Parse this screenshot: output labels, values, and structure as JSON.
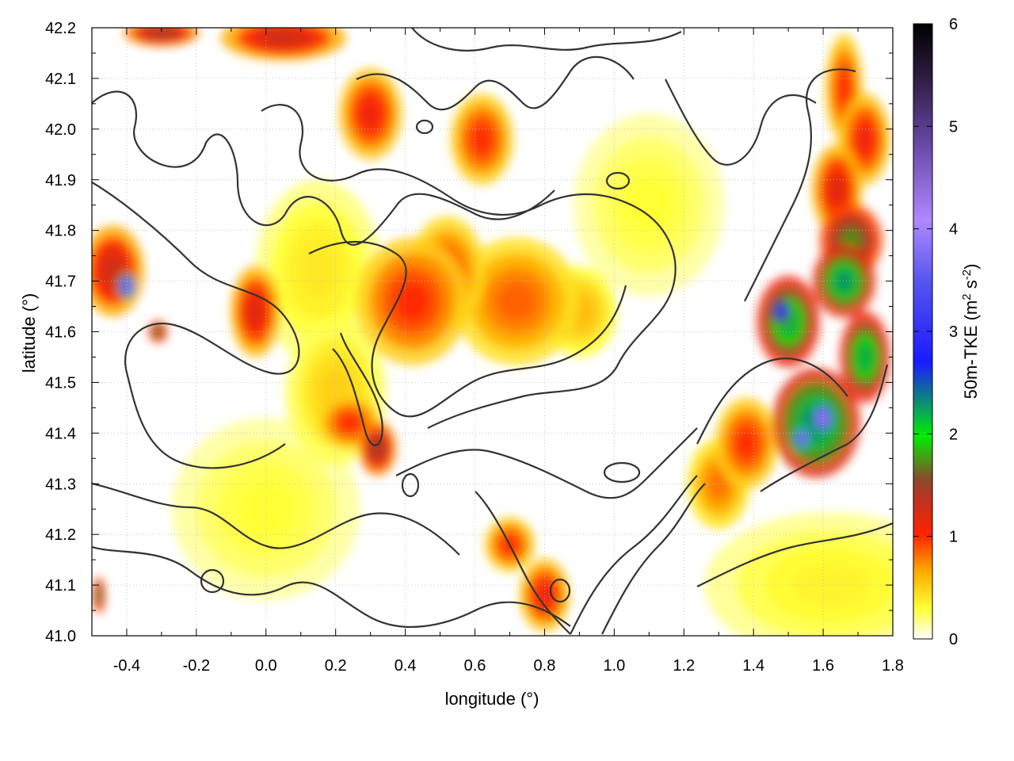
{
  "chart_data": {
    "type": "heatmap",
    "title": "",
    "xlabel": "longitude (°)",
    "ylabel": "latitude (°)",
    "colorbar_label": "50m-TKE (m2 s-2)",
    "colorbar_label_parts": {
      "base": "50m-TKE (m",
      "sup1": "2",
      "mid": " s",
      "sup2": "-2",
      "end": ")"
    },
    "xlim": [
      -0.5,
      1.8
    ],
    "ylim": [
      41.0,
      42.2
    ],
    "clim": [
      0,
      6
    ],
    "grid": true,
    "x_ticks": [
      "-0.4",
      "-0.2",
      "0.0",
      "0.2",
      "0.4",
      "0.6",
      "0.8",
      "1.0",
      "1.2",
      "1.4",
      "1.6",
      "1.8"
    ],
    "x_tick_values": [
      -0.4,
      -0.2,
      0.0,
      0.2,
      0.4,
      0.6,
      0.8,
      1.0,
      1.2,
      1.4,
      1.6,
      1.8
    ],
    "y_ticks": [
      "41.0",
      "41.1",
      "41.2",
      "41.3",
      "41.4",
      "41.5",
      "41.6",
      "41.7",
      "41.8",
      "41.9",
      "42.0",
      "42.1",
      "42.2"
    ],
    "y_tick_values": [
      41.0,
      41.1,
      41.2,
      41.3,
      41.4,
      41.5,
      41.6,
      41.7,
      41.8,
      41.9,
      42.0,
      42.1,
      42.2
    ],
    "colorbar_ticks": [
      "0",
      "1",
      "2",
      "3",
      "4",
      "5",
      "6"
    ],
    "colorbar_tick_values": [
      0,
      1,
      2,
      3,
      4,
      5,
      6
    ],
    "colormap": [
      "#ffffff",
      "#ffff00",
      "#ffa500",
      "#ff0000",
      "#a52a2a",
      "#00ff00",
      "#0000ff",
      "#9370db",
      "#000000"
    ],
    "contour_color": "#333333",
    "features": [
      {
        "lon": 0.42,
        "lat": 41.66,
        "tke": 1.0,
        "sx": 0.09,
        "sy": 0.07
      },
      {
        "lon": 0.52,
        "lat": 41.72,
        "tke": 0.9,
        "sx": 0.06,
        "sy": 0.06
      },
      {
        "lon": 0.72,
        "lat": 41.66,
        "tke": 0.85,
        "sx": 0.1,
        "sy": 0.07
      },
      {
        "lon": 0.9,
        "lat": 41.64,
        "tke": 0.6,
        "sx": 0.06,
        "sy": 0.05
      },
      {
        "lon": -0.44,
        "lat": 41.72,
        "tke": 1.3,
        "sx": 0.05,
        "sy": 0.05
      },
      {
        "lon": -0.4,
        "lat": 41.69,
        "tke": 4.2,
        "sx": 0.015,
        "sy": 0.015
      },
      {
        "lon": -0.31,
        "lat": 41.6,
        "tke": 1.8,
        "sx": 0.015,
        "sy": 0.012
      },
      {
        "lon": -0.03,
        "lat": 41.64,
        "tke": 1.2,
        "sx": 0.04,
        "sy": 0.05
      },
      {
        "lon": 1.66,
        "lat": 42.08,
        "tke": 1.0,
        "sx": 0.03,
        "sy": 0.06
      },
      {
        "lon": 1.72,
        "lat": 41.98,
        "tke": 1.1,
        "sx": 0.04,
        "sy": 0.05
      },
      {
        "lon": 1.64,
        "lat": 41.88,
        "tke": 1.2,
        "sx": 0.04,
        "sy": 0.05
      },
      {
        "lon": 1.68,
        "lat": 41.78,
        "tke": 1.8,
        "sx": 0.05,
        "sy": 0.04
      },
      {
        "lon": 1.66,
        "lat": 41.7,
        "tke": 2.3,
        "sx": 0.05,
        "sy": 0.04
      },
      {
        "lon": 1.5,
        "lat": 41.62,
        "tke": 2.2,
        "sx": 0.05,
        "sy": 0.05
      },
      {
        "lon": 1.48,
        "lat": 41.64,
        "tke": 3.3,
        "sx": 0.015,
        "sy": 0.015
      },
      {
        "lon": 1.72,
        "lat": 41.55,
        "tke": 2.2,
        "sx": 0.04,
        "sy": 0.05
      },
      {
        "lon": 1.58,
        "lat": 41.42,
        "tke": 2.4,
        "sx": 0.07,
        "sy": 0.06
      },
      {
        "lon": 1.6,
        "lat": 41.43,
        "tke": 4.2,
        "sx": 0.02,
        "sy": 0.02
      },
      {
        "lon": 1.54,
        "lat": 41.39,
        "tke": 4.0,
        "sx": 0.015,
        "sy": 0.015
      },
      {
        "lon": 1.38,
        "lat": 41.38,
        "tke": 1.0,
        "sx": 0.05,
        "sy": 0.05
      },
      {
        "lon": 1.3,
        "lat": 41.3,
        "tke": 0.8,
        "sx": 0.05,
        "sy": 0.05
      },
      {
        "lon": 1.62,
        "lat": 41.1,
        "tke": 0.35,
        "sx": 0.2,
        "sy": 0.08
      },
      {
        "lon": 0.8,
        "lat": 41.08,
        "tke": 1.1,
        "sx": 0.04,
        "sy": 0.04
      },
      {
        "lon": 0.7,
        "lat": 41.18,
        "tke": 1.0,
        "sx": 0.04,
        "sy": 0.03
      },
      {
        "lon": 0.32,
        "lat": 41.37,
        "tke": 1.5,
        "sx": 0.03,
        "sy": 0.03
      },
      {
        "lon": 0.24,
        "lat": 41.42,
        "tke": 1.0,
        "sx": 0.05,
        "sy": 0.03
      },
      {
        "lon": 0.05,
        "lat": 42.18,
        "tke": 1.3,
        "sx": 0.1,
        "sy": 0.025
      },
      {
        "lon": -0.3,
        "lat": 42.19,
        "tke": 1.5,
        "sx": 0.06,
        "sy": 0.015
      },
      {
        "lon": 0.3,
        "lat": 42.03,
        "tke": 1.1,
        "sx": 0.05,
        "sy": 0.05
      },
      {
        "lon": 0.62,
        "lat": 41.98,
        "tke": 1.0,
        "sx": 0.05,
        "sy": 0.05
      },
      {
        "lon": 0.15,
        "lat": 41.72,
        "tke": 0.4,
        "sx": 0.1,
        "sy": 0.1
      },
      {
        "lon": 0.2,
        "lat": 41.48,
        "tke": 0.5,
        "sx": 0.08,
        "sy": 0.08
      },
      {
        "lon": -0.48,
        "lat": 41.08,
        "tke": 1.8,
        "sx": 0.01,
        "sy": 0.02
      },
      {
        "lon": 0.0,
        "lat": 41.25,
        "tke": 0.3,
        "sx": 0.15,
        "sy": 0.1
      },
      {
        "lon": 1.1,
        "lat": 41.85,
        "tke": 0.3,
        "sx": 0.12,
        "sy": 0.1
      }
    ]
  }
}
